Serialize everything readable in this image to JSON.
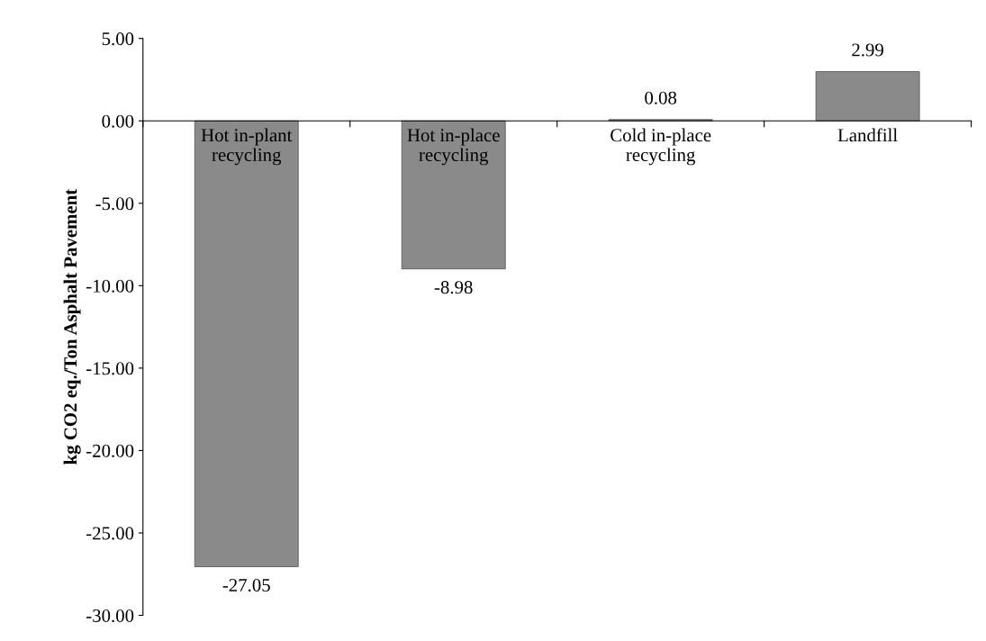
{
  "chart_data": {
    "type": "bar",
    "ylabel": "kg CO2 eq./Ton Asphalt Pavement",
    "categories": [
      "Hot in-plant\nrecycling",
      "Hot in-place\nrecycling",
      "Cold in-place\nrecycling",
      "Landfill"
    ],
    "values": [
      -27.05,
      -8.98,
      0.08,
      2.99
    ],
    "color": "#8a8a8a",
    "ylim": [
      -30,
      5
    ],
    "yticks": [
      {
        "value": -30,
        "label": "-30.00"
      },
      {
        "value": -25,
        "label": "-25.00"
      },
      {
        "value": -20,
        "label": "-20.00"
      },
      {
        "value": -15,
        "label": "-15.00"
      },
      {
        "value": -10,
        "label": "-10.00"
      },
      {
        "value": -5,
        "label": "-5.00"
      },
      {
        "value": 0,
        "label": "0.00"
      },
      {
        "value": 5,
        "label": "5.00"
      }
    ],
    "data_labels": true,
    "grid": false,
    "legend": false
  }
}
